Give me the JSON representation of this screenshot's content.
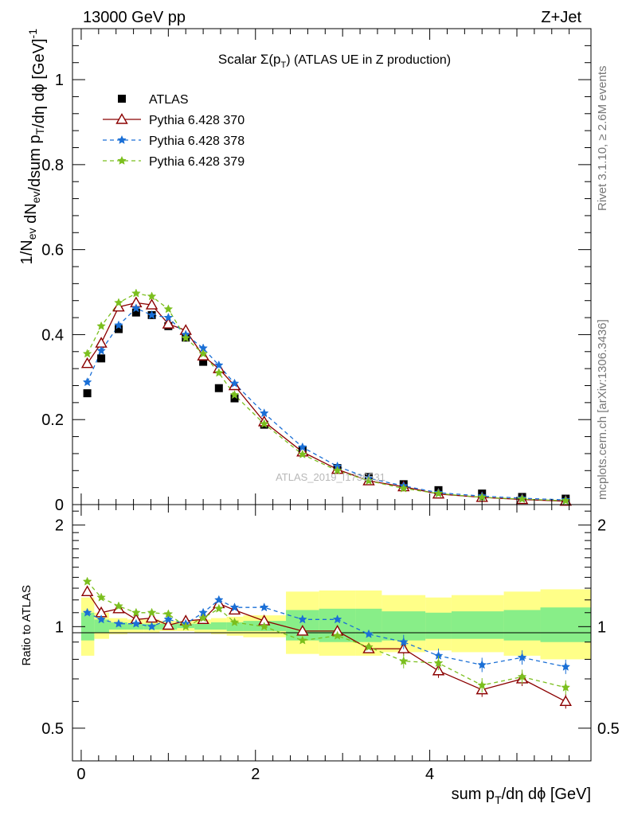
{
  "header": {
    "left": "13000 GeV pp",
    "right": "Z+Jet"
  },
  "side_text": {
    "rivet": "Rivet 3.1.10, ≥ 2.6M events",
    "mcplots": "mcplots.cern.ch [arXiv:1306.3436]"
  },
  "watermark": "ATLAS_2019_I1736531",
  "chart_data": {
    "type": "scatter",
    "title": "Scalar Σ(p_T) (ATLAS UE in Z production)",
    "xlabel": "sum p_T/dη dϕ [GeV]",
    "ylabel": "1/N_ev dN_ev/dsum p_T/dη dϕ [GeV]^-1",
    "ratio_ylabel": "Ratio to ATLAS",
    "xlim": [
      -0.1,
      5.85
    ],
    "ylim": [
      0,
      1.12
    ],
    "ratio_ylim": [
      0.4,
      2.3
    ],
    "ratio_scale": "log",
    "x_ticks": [
      "0",
      "2",
      "4"
    ],
    "y_ticks": [
      "0.2",
      "0.4",
      "0.6",
      "0.8",
      "1"
    ],
    "ratio_ticks": [
      "0.5",
      "1",
      "2"
    ],
    "legend_position": "top-left",
    "x": [
      0.07,
      0.23,
      0.43,
      0.63,
      0.81,
      1.0,
      1.2,
      1.4,
      1.58,
      1.76,
      2.1,
      2.54,
      2.94,
      3.3,
      3.7,
      4.1,
      4.6,
      5.06,
      5.56
    ],
    "series": [
      {
        "name": "ATLAS",
        "color": "#000000",
        "marker": "square",
        "values": [
          0.262,
          0.344,
          0.413,
          0.452,
          0.446,
          0.42,
          0.393,
          0.336,
          0.274,
          0.25,
          0.188,
          0.128,
          0.086,
          0.065,
          0.048,
          0.034,
          0.026,
          0.018,
          0.014
        ]
      },
      {
        "name": "Pythia 6.428 370",
        "color": "#8b0000",
        "marker": "triangle-open",
        "dash": "",
        "values": [
          0.332,
          0.38,
          0.465,
          0.475,
          0.47,
          0.425,
          0.41,
          0.35,
          0.32,
          0.28,
          0.195,
          0.124,
          0.083,
          0.056,
          0.042,
          0.025,
          0.017,
          0.012,
          0.008
        ]
      },
      {
        "name": "Pythia 6.428 378",
        "color": "#1a6fd6",
        "marker": "star",
        "dash": "5,4",
        "values": [
          0.288,
          0.362,
          0.422,
          0.462,
          0.446,
          0.44,
          0.4,
          0.368,
          0.328,
          0.285,
          0.215,
          0.135,
          0.09,
          0.062,
          0.044,
          0.028,
          0.02,
          0.015,
          0.011
        ]
      },
      {
        "name": "Pythia 6.428 379",
        "color": "#7bbf1e",
        "marker": "star",
        "dash": "5,4",
        "values": [
          0.355,
          0.42,
          0.475,
          0.497,
          0.49,
          0.46,
          0.392,
          0.355,
          0.31,
          0.258,
          0.19,
          0.118,
          0.08,
          0.056,
          0.038,
          0.026,
          0.017,
          0.013,
          0.009
        ]
      }
    ],
    "ratio": {
      "x_edges": [
        0.0,
        0.15,
        0.32,
        0.53,
        0.72,
        0.9,
        1.1,
        1.3,
        1.49,
        1.67,
        1.86,
        2.35,
        2.73,
        3.15,
        3.45,
        3.95,
        4.25,
        4.85,
        5.27,
        5.85
      ],
      "band_yellow": [
        [
          0.82,
          1.22
        ],
        [
          0.92,
          1.1
        ],
        [
          0.95,
          1.06
        ],
        [
          0.96,
          1.05
        ],
        [
          0.96,
          1.05
        ],
        [
          0.97,
          1.04
        ],
        [
          0.97,
          1.04
        ],
        [
          0.96,
          1.05
        ],
        [
          0.95,
          1.06
        ],
        [
          0.94,
          1.07
        ],
        [
          0.93,
          1.08
        ],
        [
          0.83,
          1.27
        ],
        [
          0.82,
          1.28
        ],
        [
          0.82,
          1.28
        ],
        [
          0.84,
          1.24
        ],
        [
          0.85,
          1.22
        ],
        [
          0.84,
          1.24
        ],
        [
          0.82,
          1.27
        ],
        [
          0.8,
          1.29
        ]
      ],
      "band_green": [
        [
          0.91,
          1.1
        ],
        [
          0.96,
          1.05
        ],
        [
          0.98,
          1.03
        ],
        [
          0.98,
          1.02
        ],
        [
          0.98,
          1.02
        ],
        [
          0.98,
          1.02
        ],
        [
          0.99,
          1.02
        ],
        [
          0.98,
          1.02
        ],
        [
          0.98,
          1.03
        ],
        [
          0.97,
          1.03
        ],
        [
          0.97,
          1.04
        ],
        [
          0.91,
          1.12
        ],
        [
          0.9,
          1.13
        ],
        [
          0.9,
          1.13
        ],
        [
          0.91,
          1.11
        ],
        [
          0.92,
          1.1
        ],
        [
          0.92,
          1.11
        ],
        [
          0.91,
          1.12
        ],
        [
          0.9,
          1.14
        ]
      ],
      "series": [
        {
          "name": "Pythia 6.428 370",
          "values": [
            1.27,
            1.1,
            1.13,
            1.05,
            1.06,
            1.01,
            1.04,
            1.05,
            1.17,
            1.12,
            1.04,
            0.97,
            0.97,
            0.86,
            0.86,
            0.74,
            0.65,
            0.7,
            0.6
          ]
        },
        {
          "name": "Pythia 6.428 378",
          "values": [
            1.1,
            1.05,
            1.02,
            1.02,
            1.0,
            1.05,
            1.02,
            1.1,
            1.2,
            1.14,
            1.14,
            1.05,
            1.05,
            0.95,
            0.9,
            0.82,
            0.77,
            0.81,
            0.76
          ]
        },
        {
          "name": "Pythia 6.428 379",
          "values": [
            1.36,
            1.22,
            1.15,
            1.1,
            1.1,
            1.09,
            1.0,
            1.06,
            1.13,
            1.03,
            1.0,
            0.91,
            0.94,
            0.87,
            0.79,
            0.78,
            0.67,
            0.71,
            0.66
          ]
        }
      ]
    }
  }
}
